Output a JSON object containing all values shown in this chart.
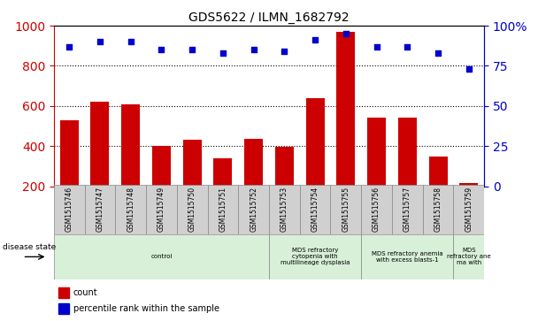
{
  "title": "GDS5622 / ILMN_1682792",
  "samples": [
    "GSM1515746",
    "GSM1515747",
    "GSM1515748",
    "GSM1515749",
    "GSM1515750",
    "GSM1515751",
    "GSM1515752",
    "GSM1515753",
    "GSM1515754",
    "GSM1515755",
    "GSM1515756",
    "GSM1515757",
    "GSM1515758",
    "GSM1515759"
  ],
  "counts": [
    530,
    620,
    610,
    400,
    430,
    340,
    435,
    395,
    640,
    970,
    540,
    540,
    350,
    215
  ],
  "percentile_ranks": [
    87,
    90,
    90,
    85,
    85,
    83,
    85,
    84,
    91,
    95,
    87,
    87,
    83,
    73
  ],
  "ylim_left": [
    200,
    1000
  ],
  "ylim_right": [
    0,
    100
  ],
  "yticks_left": [
    200,
    400,
    600,
    800,
    1000
  ],
  "yticks_right": [
    0,
    25,
    50,
    75,
    100
  ],
  "bar_color": "#cc0000",
  "dot_color": "#0000cc",
  "grid_color": "#000000",
  "group_boundaries": [
    [
      0,
      7,
      "control",
      "#d8f0d8"
    ],
    [
      7,
      10,
      "MDS refractory\ncytopenia with\nmultilineage dysplasia",
      "#d8f0d8"
    ],
    [
      10,
      13,
      "MDS refractory anemia\nwith excess blasts-1",
      "#d8f0d8"
    ],
    [
      13,
      14,
      "MDS\nrefractory ane\nma with",
      "#d8f0d8"
    ]
  ],
  "tick_bg_color": "#d0d0d0",
  "tick_border_color": "#888888",
  "fig_width": 6.08,
  "fig_height": 3.63,
  "dpi": 100
}
